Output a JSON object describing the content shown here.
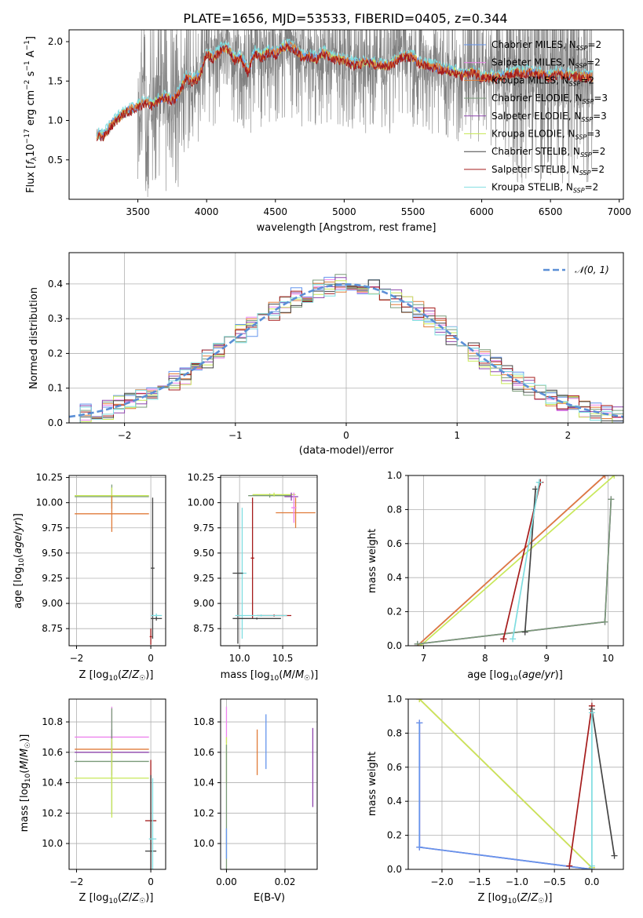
{
  "figure": {
    "title": "PLATE=1656, MJD=53533, FIBERID=0405, z=0.344"
  },
  "colors": {
    "chabrier_miles": "#6495ed",
    "salpeter_miles": "#ee82ee",
    "kroupa_miles": "#e07b39",
    "chabrier_elodie": "#7a9a78",
    "salpeter_elodie": "#8e44ad",
    "kroupa_elodie": "#c8e85a",
    "chabrier_stelib": "#444444",
    "salpeter_stelib": "#a51b1b",
    "kroupa_stelib": "#7fdde0",
    "data": "#808080",
    "normal": "#5b8fd6"
  },
  "chart_data": [
    {
      "id": "spectrum",
      "type": "line",
      "title": "PLATE=1656, MJD=53533, FIBERID=0405, z=0.344",
      "xlabel": "wavelength [Angstrom, rest frame]",
      "ylabel": "Flux [f_λ 10^-17 erg cm^-2 s^-1 A^-1]",
      "xlim": [
        3000,
        7030
      ],
      "ylim": [
        0.0,
        2.15
      ],
      "xticks": [
        3500,
        4000,
        4500,
        5000,
        5500,
        6000,
        6500,
        7000
      ],
      "yticks": [
        0.5,
        1.0,
        1.5,
        2.0
      ],
      "grid": false,
      "legend_position": "top-right",
      "legend": [
        {
          "label": "Chabrier MILES, N_SSP=2",
          "color_key": "chabrier_miles"
        },
        {
          "label": "Salpeter MILES, N_SSP=2",
          "color_key": "salpeter_miles"
        },
        {
          "label": "Kroupa MILES, N_SSP=2",
          "color_key": "kroupa_miles"
        },
        {
          "label": "Chabrier ELODIE, N_SSP=3",
          "color_key": "chabrier_elodie"
        },
        {
          "label": "Salpeter ELODIE, N_SSP=3",
          "color_key": "salpeter_elodie"
        },
        {
          "label": "Kroupa ELODIE, N_SSP=3",
          "color_key": "kroupa_elodie"
        },
        {
          "label": "Chabrier STELIB, N_SSP=2",
          "color_key": "chabrier_stelib"
        },
        {
          "label": "Salpeter STELIB, N_SSP=2",
          "color_key": "salpeter_stelib"
        },
        {
          "label": "Kroupa STELIB, N_SSP=2",
          "color_key": "kroupa_stelib"
        }
      ],
      "model_continuum": {
        "x": [
          3200,
          3250,
          3300,
          3350,
          3400,
          3450,
          3500,
          3550,
          3600,
          3650,
          3700,
          3750,
          3800,
          3850,
          3900,
          3950,
          4000,
          4050,
          4100,
          4150,
          4200,
          4250,
          4300,
          4350,
          4400,
          4450,
          4500,
          4550,
          4600,
          4650,
          4700,
          4750,
          4800,
          4850,
          4900,
          4950,
          5000,
          5050,
          5100,
          5150,
          5200,
          5250,
          5300,
          5350,
          5400,
          5450,
          5500,
          5550,
          5600,
          5650,
          5700,
          5750,
          5800,
          5850,
          5900,
          5950,
          6000,
          6050,
          6100,
          6150,
          6200,
          6250,
          6300,
          6350,
          6400,
          6450,
          6500,
          6550,
          6600,
          6650,
          6700,
          6750,
          6800
        ],
        "y": [
          0.82,
          0.8,
          0.93,
          1.02,
          1.1,
          1.14,
          1.18,
          1.24,
          1.2,
          1.26,
          1.3,
          1.25,
          1.35,
          1.55,
          1.5,
          1.58,
          1.85,
          1.8,
          1.9,
          1.92,
          1.78,
          1.8,
          1.62,
          1.86,
          1.8,
          1.88,
          1.84,
          1.92,
          1.95,
          1.9,
          1.8,
          1.82,
          1.78,
          1.86,
          1.8,
          1.78,
          1.76,
          1.72,
          1.72,
          1.74,
          1.74,
          1.7,
          1.7,
          1.72,
          1.8,
          1.82,
          1.8,
          1.72,
          1.7,
          1.68,
          1.66,
          1.64,
          1.62,
          1.58,
          1.6,
          1.62,
          1.55,
          1.56,
          1.54,
          1.56,
          1.58,
          1.62,
          1.6,
          1.62,
          1.6,
          1.58,
          1.56,
          1.6,
          1.58,
          1.58,
          1.56,
          1.56,
          1.55
        ]
      }
    },
    {
      "id": "residuals",
      "type": "line",
      "xlabel": "(data-model)/error",
      "ylabel": "Normed distribution",
      "xlim": [
        -2.5,
        2.5
      ],
      "ylim": [
        0.0,
        0.49
      ],
      "xticks": [
        -2,
        -1,
        0,
        1,
        2
      ],
      "yticks": [
        0.0,
        0.1,
        0.2,
        0.3,
        0.4
      ],
      "grid": true,
      "legend_position": "top-right",
      "legend": [
        {
          "label": "𝒩(0, 1)",
          "color_key": "normal",
          "style": "dashed"
        }
      ],
      "curve": "standard normal density",
      "hist_bin_width": 0.1
    },
    {
      "id": "age_vs_Z",
      "type": "scatter",
      "xlabel": "Z [log10(Z/Z☉)]",
      "ylabel": "age  [log10(age/yr)]",
      "xlim": [
        -2.2,
        0.4
      ],
      "ylim": [
        8.58,
        10.27
      ],
      "xticks": [
        -2,
        0
      ],
      "xtick_labels": [
        "−2",
        "0"
      ],
      "yticks": [
        8.75,
        9.0,
        9.25,
        9.5,
        9.75,
        10.0,
        10.25
      ],
      "ytick_labels": [
        "8.75",
        "9.00",
        "9.25",
        "9.50",
        "9.75",
        "10.00",
        "10.25"
      ],
      "grid": true,
      "points": [
        {
          "color_key": "chabrier_elodie",
          "x": -1.05,
          "y": 10.06,
          "xerr": 1.0,
          "yerr": 0.12
        },
        {
          "color_key": "kroupa_elodie",
          "x": -1.05,
          "y": 10.07,
          "xerr": 1.0,
          "yerr": 0.08
        },
        {
          "color_key": "kroupa_miles",
          "x": -1.05,
          "y": 9.89,
          "xerr": 1.0,
          "yerr": 0.18
        },
        {
          "color_key": "chabrier_stelib",
          "x": 0.05,
          "y": 9.35,
          "xerr": 0.05,
          "yerr": 0.7
        },
        {
          "color_key": "salpeter_stelib",
          "x": 0.0,
          "y": 8.67,
          "xerr": 0.03,
          "yerr": 0.08
        },
        {
          "color_key": "kroupa_stelib",
          "x": 0.15,
          "y": 8.88,
          "xerr": 0.15,
          "yerr": 0.02
        },
        {
          "color_key": "chabrier_stelib",
          "x": 0.15,
          "y": 8.85,
          "xerr": 0.15,
          "yerr": 0.02
        }
      ]
    },
    {
      "id": "age_vs_mass",
      "type": "scatter",
      "xlabel": "mass [log10(M/M☉)]",
      "ylabel": "",
      "xlim": [
        9.78,
        10.9
      ],
      "ylim": [
        8.58,
        10.27
      ],
      "xticks": [
        10.0,
        10.5
      ],
      "xtick_labels": [
        "10.0",
        "10.5"
      ],
      "yticks": [
        8.75,
        9.0,
        9.25,
        9.5,
        9.75,
        10.0,
        10.25
      ],
      "ytick_labels": [
        "8.75",
        "9.00",
        "9.25",
        "9.50",
        "9.75",
        "10.00",
        "10.25"
      ],
      "grid": true,
      "points": [
        {
          "color_key": "chabrier_elodie",
          "x": 10.35,
          "y": 10.07,
          "xerr": 0.25,
          "yerr": 0.02
        },
        {
          "color_key": "kroupa_elodie",
          "x": 10.4,
          "y": 10.08,
          "xerr": 0.25,
          "yerr": 0.02
        },
        {
          "color_key": "salpeter_elodie",
          "x": 10.6,
          "y": 10.06,
          "xerr": 0.08,
          "yerr": 0.04
        },
        {
          "color_key": "kroupa_miles",
          "x": 10.65,
          "y": 9.9,
          "xerr": 0.23,
          "yerr": 0.15
        },
        {
          "color_key": "salpeter_miles",
          "x": 10.63,
          "y": 9.95,
          "xerr": 0.03,
          "yerr": 0.15
        },
        {
          "color_key": "kroupa_stelib",
          "x": 10.03,
          "y": 9.3,
          "xerr": 0.05,
          "yerr": 0.65
        },
        {
          "color_key": "chabrier_stelib",
          "x": 9.98,
          "y": 9.3,
          "xerr": 0.06,
          "yerr": 0.7
        },
        {
          "color_key": "salpeter_stelib",
          "x": 10.15,
          "y": 9.45,
          "xerr": 0.02,
          "yerr": 0.6
        },
        {
          "color_key": "salpeter_stelib",
          "x": 10.4,
          "y": 8.88,
          "xerr": 0.2,
          "yerr": 0.01
        },
        {
          "color_key": "kroupa_stelib",
          "x": 10.25,
          "y": 8.88,
          "xerr": 0.3,
          "yerr": 0.01
        },
        {
          "color_key": "chabrier_stelib",
          "x": 10.2,
          "y": 8.85,
          "xerr": 0.28,
          "yerr": 0.01
        }
      ]
    },
    {
      "id": "weight_vs_age",
      "type": "line",
      "xlabel": "age  [log10(age/yr)]",
      "ylabel": "mass weight",
      "xlim": [
        6.75,
        10.25
      ],
      "ylim": [
        0.0,
        1.0
      ],
      "xticks": [
        7,
        8,
        9,
        10
      ],
      "yticks": [
        0.0,
        0.2,
        0.4,
        0.6,
        0.8,
        1.0
      ],
      "ytick_labels": [
        "0.0",
        "0.2",
        "0.4",
        "0.6",
        "0.8",
        "1.0"
      ],
      "grid": true,
      "series": [
        {
          "color_key": "chabrier_miles",
          "x": [
            6.9,
            9.95
          ],
          "y": [
            0.0,
            1.0
          ]
        },
        {
          "color_key": "salpeter_miles",
          "x": [
            6.9,
            9.95
          ],
          "y": [
            0.0,
            1.0
          ]
        },
        {
          "color_key": "kroupa_miles",
          "x": [
            6.9,
            9.95
          ],
          "y": [
            0.0,
            1.0
          ]
        },
        {
          "color_key": "kroupa_elodie",
          "x": [
            6.95,
            10.1
          ],
          "y": [
            0.0,
            1.0
          ]
        },
        {
          "color_key": "salpeter_elodie",
          "x": [
            6.9,
            9.95,
            10.05
          ],
          "y": [
            0.01,
            0.14,
            0.86
          ]
        },
        {
          "color_key": "chabrier_elodie",
          "x": [
            6.9,
            9.95,
            10.05
          ],
          "y": [
            0.01,
            0.14,
            0.86
          ]
        },
        {
          "color_key": "salpeter_stelib",
          "x": [
            8.3,
            8.9
          ],
          "y": [
            0.04,
            0.96
          ]
        },
        {
          "color_key": "chabrier_stelib",
          "x": [
            8.65,
            8.82
          ],
          "y": [
            0.08,
            0.92
          ]
        },
        {
          "color_key": "kroupa_stelib",
          "x": [
            8.45,
            8.88
          ],
          "y": [
            0.04,
            0.96
          ]
        }
      ]
    },
    {
      "id": "mass_vs_Z",
      "type": "scatter",
      "xlabel": "Z [log10(Z/Z☉)]",
      "ylabel": "mass [log10(M/M☉)]",
      "xlim": [
        -2.2,
        0.4
      ],
      "ylim": [
        9.83,
        10.95
      ],
      "xticks": [
        -2,
        0
      ],
      "xtick_labels": [
        "−2",
        "0"
      ],
      "yticks": [
        10.0,
        10.2,
        10.4,
        10.6,
        10.8
      ],
      "ytick_labels": [
        "10.0",
        "10.2",
        "10.4",
        "10.6",
        "10.8"
      ],
      "grid": true,
      "points": [
        {
          "color_key": "salpeter_miles",
          "x": -1.05,
          "y": 10.7,
          "xerr": 1.0,
          "yerr": 0.2
        },
        {
          "color_key": "kroupa_miles",
          "x": -1.05,
          "y": 10.62,
          "xerr": 1.0,
          "yerr": 0.05
        },
        {
          "color_key": "salpeter_elodie",
          "x": -1.05,
          "y": 10.6,
          "xerr": 1.0,
          "yerr": 0.15
        },
        {
          "color_key": "chabrier_elodie",
          "x": -1.05,
          "y": 10.54,
          "xerr": 1.0,
          "yerr": 0.35
        },
        {
          "color_key": "kroupa_elodie",
          "x": -1.05,
          "y": 10.43,
          "xerr": 1.0,
          "yerr": 0.26
        },
        {
          "color_key": "salpeter_stelib",
          "x": 0.0,
          "y": 10.15,
          "xerr": 0.15,
          "yerr": 0.4
        },
        {
          "color_key": "chabrier_stelib",
          "x": 0.0,
          "y": 9.95,
          "xerr": 0.15,
          "yerr": 0.5
        },
        {
          "color_key": "kroupa_stelib",
          "x": 0.05,
          "y": 10.03,
          "xerr": 0.1,
          "yerr": 0.4
        }
      ]
    },
    {
      "id": "mass_vs_ebv",
      "type": "scatter",
      "xlabel": "E(B-V)",
      "ylabel": "",
      "xlim": [
        -0.002,
        0.031
      ],
      "ylim": [
        9.83,
        10.95
      ],
      "xticks": [
        0.0,
        0.02
      ],
      "xtick_labels": [
        "0.00",
        "0.02"
      ],
      "yticks": [
        10.0,
        10.2,
        10.4,
        10.6,
        10.8
      ],
      "ytick_labels": [
        "10.0",
        "10.2",
        "10.4",
        "10.6",
        "10.8"
      ],
      "grid": true,
      "points": [
        {
          "color_key": "salpeter_miles",
          "x": 0.0,
          "y": 10.78,
          "xerr": 0.0,
          "yerr": 0.12
        },
        {
          "color_key": "kroupa_elodie",
          "x": 0.0,
          "y": 10.55,
          "xerr": 0.0,
          "yerr": 0.15
        },
        {
          "color_key": "chabrier_elodie",
          "x": 0.0,
          "y": 10.2,
          "xerr": 0.0,
          "yerr": 0.45
        },
        {
          "color_key": "chabrier_miles",
          "x": 0.0,
          "y": 10.0,
          "xerr": 0.0,
          "yerr": 0.1
        },
        {
          "color_key": "kroupa_miles",
          "x": 0.0105,
          "y": 10.6,
          "xerr": 0.0,
          "yerr": 0.15
        },
        {
          "color_key": "chabrier_miles",
          "x": 0.0135,
          "y": 10.67,
          "xerr": 0.0,
          "yerr": 0.18
        },
        {
          "color_key": "salpeter_elodie",
          "x": 0.0295,
          "y": 10.5,
          "xerr": 0.0,
          "yerr": 0.26
        }
      ]
    },
    {
      "id": "weight_vs_Z",
      "type": "line",
      "xlabel": "Z [log10(Z/Z☉)]",
      "ylabel": "mass weight",
      "xlim": [
        -2.45,
        0.42
      ],
      "ylim": [
        0.0,
        1.0
      ],
      "xticks": [
        -2.0,
        -1.5,
        -1.0,
        -0.5,
        0.0
      ],
      "xtick_labels": [
        "−2.0",
        "−1.5",
        "−1.0",
        "−0.5",
        "0.0"
      ],
      "yticks": [
        0.0,
        0.2,
        0.4,
        0.6,
        0.8,
        1.0
      ],
      "ytick_labels": [
        "0.0",
        "0.2",
        "0.4",
        "0.6",
        "0.8",
        "1.0"
      ],
      "grid": true,
      "series": [
        {
          "color_key": "kroupa_miles",
          "x": [
            -2.3,
            0.0
          ],
          "y": [
            1.0,
            0.01
          ]
        },
        {
          "color_key": "kroupa_elodie",
          "x": [
            -2.3,
            0.0
          ],
          "y": [
            1.0,
            0.01
          ]
        },
        {
          "color_key": "salpeter_elodie",
          "x": [
            -2.3,
            -2.3,
            0.0
          ],
          "y": [
            0.86,
            0.13,
            0.0
          ]
        },
        {
          "color_key": "chabrier_miles",
          "x": [
            -2.3,
            -2.3,
            0.0
          ],
          "y": [
            0.86,
            0.13,
            0.0
          ]
        },
        {
          "color_key": "salpeter_stelib",
          "x": [
            -0.3,
            0.0
          ],
          "y": [
            0.02,
            0.96
          ]
        },
        {
          "color_key": "chabrier_stelib",
          "x": [
            0.0,
            0.3
          ],
          "y": [
            0.94,
            0.08
          ]
        },
        {
          "color_key": "kroupa_stelib",
          "x": [
            0.0,
            0.0
          ],
          "y": [
            0.92,
            0.02
          ]
        }
      ]
    }
  ]
}
